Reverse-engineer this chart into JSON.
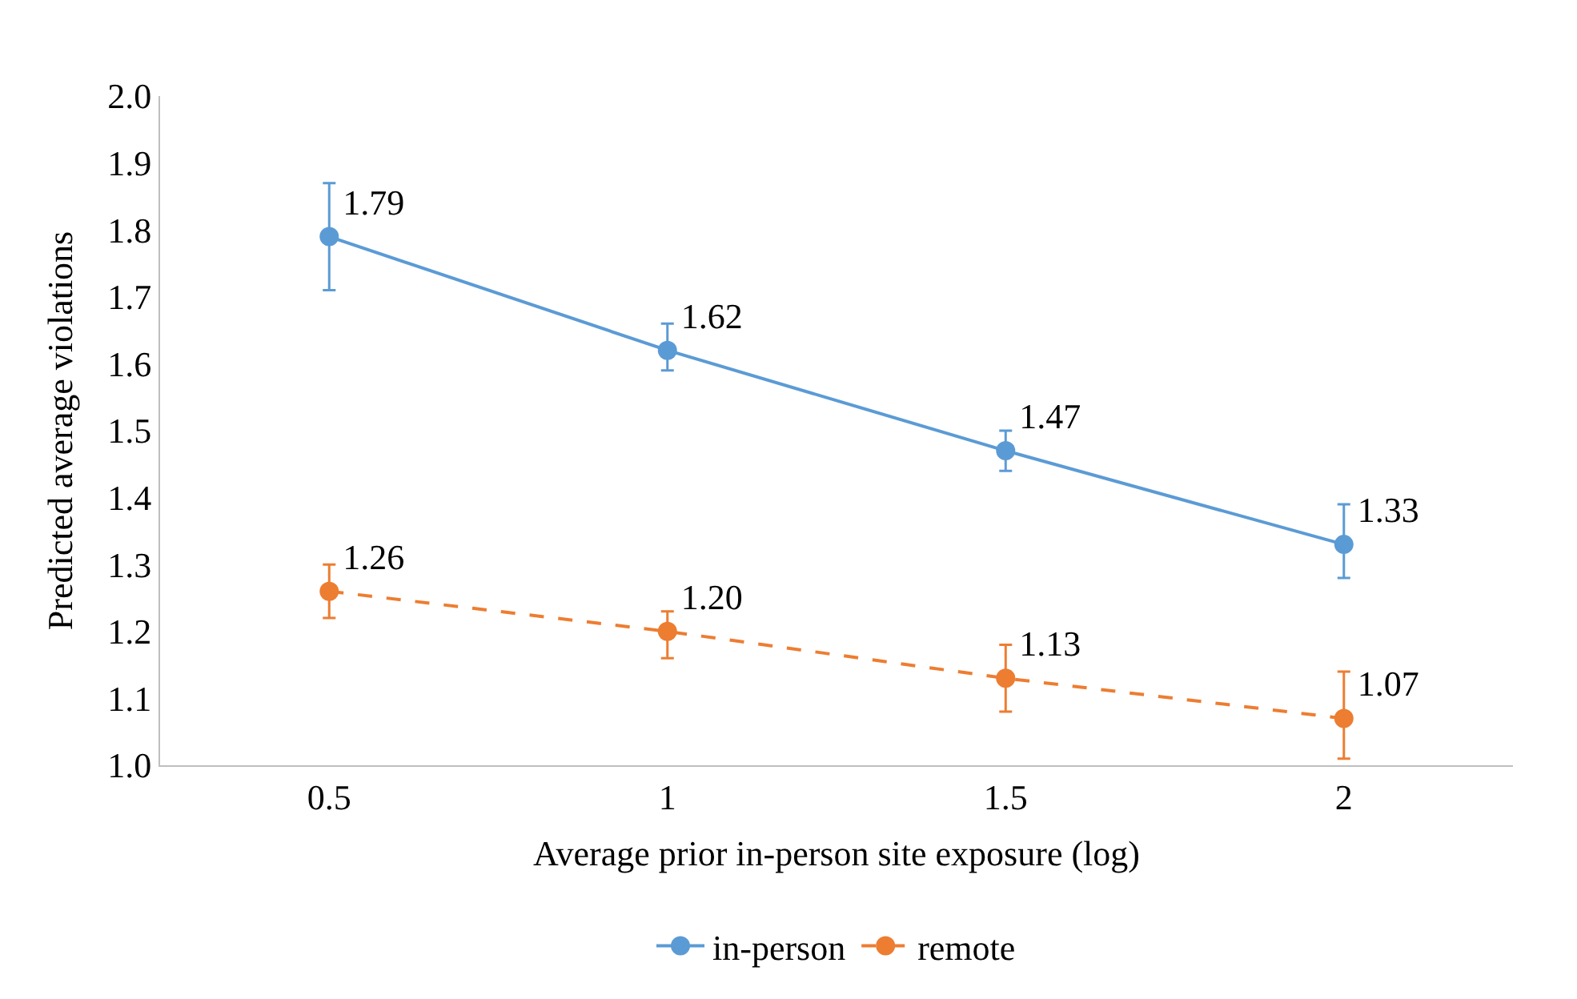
{
  "chart_data": {
    "type": "line",
    "xlabel": "Average prior in-person site exposure (log)",
    "ylabel": "Predicted average violations",
    "categories": [
      "0.5",
      "1",
      "1.5",
      "2"
    ],
    "series": [
      {
        "name": "in-person",
        "color": "#5b9bd5",
        "values": [
          1.79,
          1.62,
          1.47,
          1.33
        ],
        "value_labels": [
          "1.79",
          "1.62",
          "1.47",
          "1.33"
        ],
        "errors": [
          [
            1.71,
            1.87
          ],
          [
            1.59,
            1.66
          ],
          [
            1.44,
            1.5
          ],
          [
            1.28,
            1.39
          ]
        ],
        "line_style": "solid"
      },
      {
        "name": "remote",
        "color": "#ed7d31",
        "values": [
          1.26,
          1.2,
          1.13,
          1.07
        ],
        "value_labels": [
          "1.26",
          "1.20",
          "1.13",
          "1.07"
        ],
        "errors": [
          [
            1.22,
            1.3
          ],
          [
            1.16,
            1.23
          ],
          [
            1.08,
            1.18
          ],
          [
            1.01,
            1.14
          ]
        ],
        "line_style": "dashed"
      }
    ],
    "ylim": [
      1.0,
      2.0
    ],
    "yticks": [
      {
        "value": 1.0,
        "label": "1.0"
      },
      {
        "value": 1.1,
        "label": "1.1"
      },
      {
        "value": 1.2,
        "label": "1.2"
      },
      {
        "value": 1.3,
        "label": "1.3"
      },
      {
        "value": 1.4,
        "label": "1.4"
      },
      {
        "value": 1.5,
        "label": "1.5"
      },
      {
        "value": 1.6,
        "label": "1.6"
      },
      {
        "value": 1.7,
        "label": "1.7"
      },
      {
        "value": 1.8,
        "label": "1.8"
      },
      {
        "value": 1.9,
        "label": "1.9"
      },
      {
        "value": 2.0,
        "label": "2.0"
      }
    ],
    "marker": "circle",
    "legend": "bottom"
  }
}
